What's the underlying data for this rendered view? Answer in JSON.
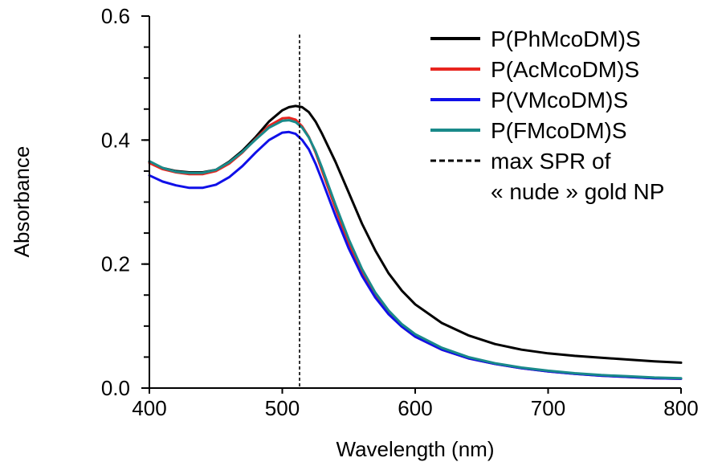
{
  "chart_data": {
    "type": "line",
    "xlabel": "Wavelength (nm)",
    "ylabel": "Absorbance",
    "xlim": [
      400,
      800
    ],
    "ylim": [
      0,
      0.6
    ],
    "x_ticks": [
      400,
      500,
      600,
      700,
      800
    ],
    "x_tick_labels": [
      "400",
      "500",
      "600",
      "700",
      "800"
    ],
    "y_ticks": [
      0.0,
      0.2,
      0.4,
      0.6
    ],
    "y_tick_labels": [
      "0.0",
      "0.2",
      "0.4",
      "0.6"
    ],
    "y_minor_step": 0.05,
    "grid": false,
    "legend_position": "top-right",
    "x": [
      400,
      410,
      420,
      430,
      440,
      450,
      460,
      470,
      480,
      490,
      500,
      505,
      510,
      515,
      520,
      525,
      530,
      540,
      550,
      560,
      570,
      580,
      590,
      600,
      620,
      640,
      660,
      680,
      700,
      720,
      740,
      760,
      780,
      800
    ],
    "series": [
      {
        "name": "P(PhMcoDM)S",
        "color": "#000000",
        "values": [
          0.365,
          0.355,
          0.35,
          0.348,
          0.348,
          0.352,
          0.365,
          0.383,
          0.405,
          0.43,
          0.448,
          0.453,
          0.455,
          0.453,
          0.445,
          0.43,
          0.41,
          0.365,
          0.315,
          0.265,
          0.222,
          0.185,
          0.157,
          0.135,
          0.105,
          0.085,
          0.071,
          0.062,
          0.056,
          0.052,
          0.049,
          0.046,
          0.043,
          0.041
        ]
      },
      {
        "name": "P(AcMcoDM)S",
        "color": "#e8251f",
        "values": [
          0.363,
          0.353,
          0.348,
          0.345,
          0.345,
          0.35,
          0.362,
          0.38,
          0.402,
          0.423,
          0.435,
          0.436,
          0.433,
          0.422,
          0.405,
          0.38,
          0.35,
          0.29,
          0.233,
          0.185,
          0.148,
          0.12,
          0.099,
          0.083,
          0.062,
          0.048,
          0.039,
          0.032,
          0.027,
          0.023,
          0.02,
          0.018,
          0.016,
          0.015
        ]
      },
      {
        "name": "P(VMcoDM)S",
        "color": "#1010e8",
        "values": [
          0.343,
          0.333,
          0.327,
          0.323,
          0.323,
          0.328,
          0.34,
          0.358,
          0.38,
          0.4,
          0.412,
          0.413,
          0.41,
          0.4,
          0.385,
          0.362,
          0.335,
          0.278,
          0.225,
          0.181,
          0.146,
          0.119,
          0.099,
          0.083,
          0.062,
          0.048,
          0.039,
          0.032,
          0.027,
          0.023,
          0.02,
          0.018,
          0.016,
          0.015
        ]
      },
      {
        "name": "P(FMcoDM)S",
        "color": "#1a8a8a",
        "values": [
          0.366,
          0.355,
          0.349,
          0.347,
          0.347,
          0.352,
          0.364,
          0.381,
          0.401,
          0.42,
          0.431,
          0.432,
          0.429,
          0.42,
          0.404,
          0.382,
          0.355,
          0.296,
          0.24,
          0.192,
          0.154,
          0.125,
          0.103,
          0.087,
          0.065,
          0.05,
          0.04,
          0.033,
          0.028,
          0.024,
          0.021,
          0.019,
          0.017,
          0.016
        ]
      }
    ],
    "reference_line": {
      "label_line1": "max SPR of",
      "label_line2": "« nude » gold NP",
      "x": 513,
      "style": "dashed"
    }
  }
}
